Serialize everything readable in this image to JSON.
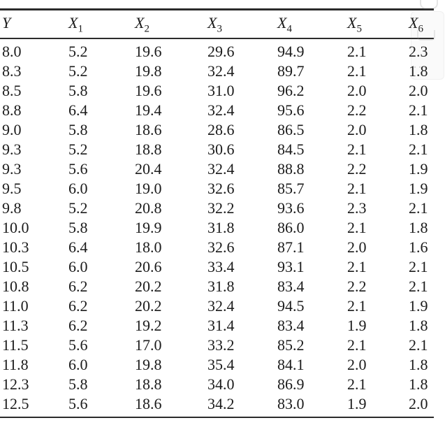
{
  "page": {
    "background_color": "#ffffff",
    "text_color": "#1b1b1b",
    "rule_color": "#2b2b2b",
    "artifact_dots": "···"
  },
  "table": {
    "columns": [
      {
        "base": "Y",
        "sub": ""
      },
      {
        "base": "X",
        "sub": "1"
      },
      {
        "base": "X",
        "sub": "2"
      },
      {
        "base": "X",
        "sub": "3"
      },
      {
        "base": "X",
        "sub": "4"
      },
      {
        "base": "X",
        "sub": "5"
      },
      {
        "base": "X",
        "sub": "6"
      }
    ],
    "rows": [
      [
        "8.0",
        "5.2",
        "19.6",
        "29.6",
        "94.9",
        "2.1",
        "2.3"
      ],
      [
        "8.3",
        "5.2",
        "19.8",
        "32.4",
        "89.7",
        "2.1",
        "1.8"
      ],
      [
        "8.5",
        "5.8",
        "19.6",
        "31.0",
        "96.2",
        "2.0",
        "2.0"
      ],
      [
        "8.8",
        "6.4",
        "19.4",
        "32.4",
        "95.6",
        "2.2",
        "2.1"
      ],
      [
        "9.0",
        "5.8",
        "18.6",
        "28.6",
        "86.5",
        "2.0",
        "1.8"
      ],
      [
        "9.3",
        "5.2",
        "18.8",
        "30.6",
        "84.5",
        "2.1",
        "2.1"
      ],
      [
        "9.3",
        "5.6",
        "20.4",
        "32.4",
        "88.8",
        "2.2",
        "1.9"
      ],
      [
        "9.5",
        "6.0",
        "19.0",
        "32.6",
        "85.7",
        "2.1",
        "1.9"
      ],
      [
        "9.8",
        "5.2",
        "20.8",
        "32.2",
        "93.6",
        "2.3",
        "2.1"
      ],
      [
        "10.0",
        "5.8",
        "19.9",
        "31.8",
        "86.0",
        "2.1",
        "1.8"
      ],
      [
        "10.3",
        "6.4",
        "18.0",
        "32.6",
        "87.1",
        "2.0",
        "1.6"
      ],
      [
        "10.5",
        "6.0",
        "20.6",
        "33.4",
        "93.1",
        "2.1",
        "2.1"
      ],
      [
        "10.8",
        "6.2",
        "20.2",
        "31.8",
        "83.4",
        "2.2",
        "2.1"
      ],
      [
        "11.0",
        "6.2",
        "20.2",
        "32.4",
        "94.5",
        "2.1",
        "1.9"
      ],
      [
        "11.3",
        "6.2",
        "19.2",
        "31.4",
        "83.4",
        "1.9",
        "1.8"
      ],
      [
        "11.5",
        "5.6",
        "17.0",
        "33.2",
        "85.2",
        "2.1",
        "2.1"
      ],
      [
        "11.8",
        "6.0",
        "19.8",
        "35.4",
        "84.1",
        "2.0",
        "1.8"
      ],
      [
        "12.3",
        "5.8",
        "18.8",
        "34.0",
        "86.9",
        "2.1",
        "1.8"
      ],
      [
        "12.5",
        "5.6",
        "18.6",
        "34.2",
        "83.0",
        "1.9",
        "2.0"
      ]
    ]
  }
}
